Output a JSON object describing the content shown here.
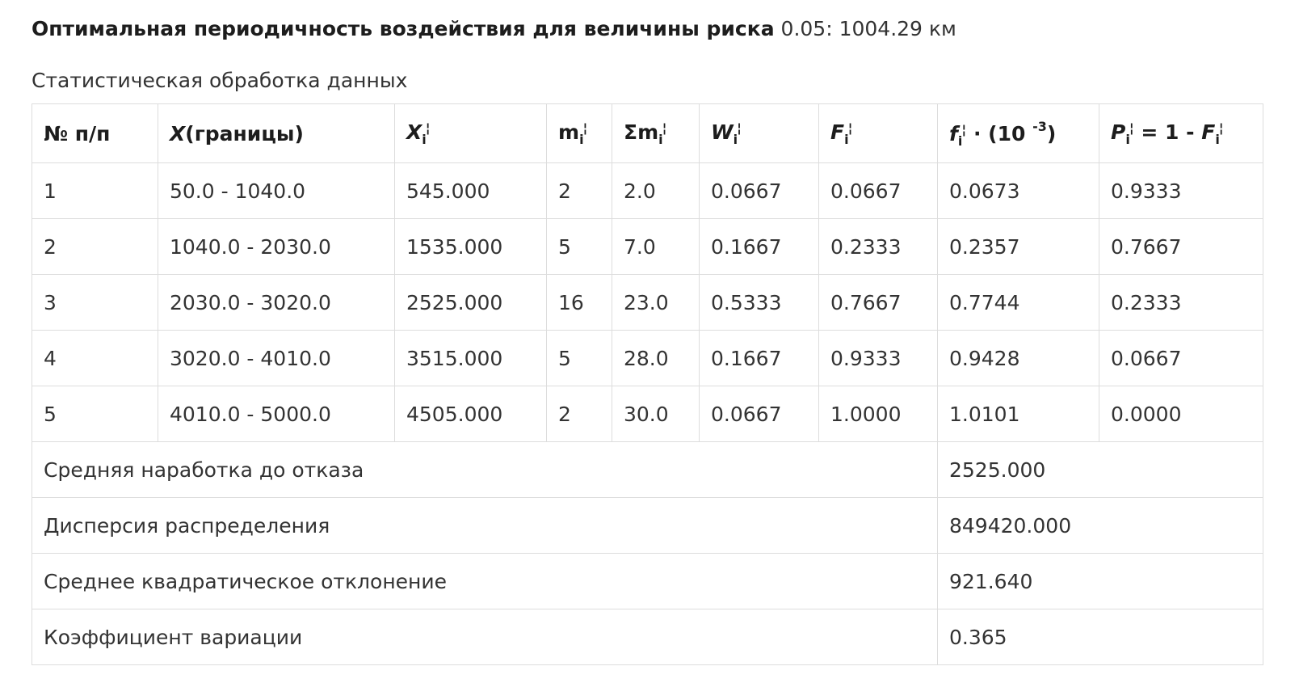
{
  "headline": {
    "label": "Оптимальная периодичность воздействия для величины риска",
    "value": "0.05: 1004.29 км"
  },
  "subtitle": "Статистическая обработка данных",
  "table": {
    "headers": {
      "num": "№ п/п",
      "bounds_x": "X",
      "bounds_rest": "(границы)",
      "xi": "X",
      "mi": "m",
      "sum_mi": "Σm",
      "wi": "W",
      "fi_cap": "F",
      "fi_small": "f",
      "fi_scale": "· (10",
      "fi_exp": "-3",
      "fi_close": ")",
      "pi": "P",
      "pi_eq": "= 1 -",
      "pi_f": "F",
      "sub_i": "i"
    },
    "rows": [
      {
        "n": "1",
        "bounds": "50.0 - 1040.0",
        "xi": "545.000",
        "mi": "2",
        "sum": "2.0",
        "wi": "0.0667",
        "fi": "0.0667",
        "fsmall": "0.0673",
        "pi": "0.9333"
      },
      {
        "n": "2",
        "bounds": "1040.0 - 2030.0",
        "xi": "1535.000",
        "mi": "5",
        "sum": "7.0",
        "wi": "0.1667",
        "fi": "0.2333",
        "fsmall": "0.2357",
        "pi": "0.7667"
      },
      {
        "n": "3",
        "bounds": "2030.0 - 3020.0",
        "xi": "2525.000",
        "mi": "16",
        "sum": "23.0",
        "wi": "0.5333",
        "fi": "0.7667",
        "fsmall": "0.7744",
        "pi": "0.2333"
      },
      {
        "n": "4",
        "bounds": "3020.0 - 4010.0",
        "xi": "3515.000",
        "mi": "5",
        "sum": "28.0",
        "wi": "0.1667",
        "fi": "0.9333",
        "fsmall": "0.9428",
        "pi": "0.0667"
      },
      {
        "n": "5",
        "bounds": "4010.0 - 5000.0",
        "xi": "4505.000",
        "mi": "2",
        "sum": "30.0",
        "wi": "0.0667",
        "fi": "1.0000",
        "fsmall": "1.0101",
        "pi": "0.0000"
      }
    ],
    "summary": [
      {
        "label": "Средняя наработка до отказа",
        "value": "2525.000"
      },
      {
        "label": "Дисперсия распределения",
        "value": "849420.000"
      },
      {
        "label": "Среднее квадратическое отклонение",
        "value": "921.640"
      },
      {
        "label": "Коэффициент вариации",
        "value": "0.365"
      }
    ]
  }
}
